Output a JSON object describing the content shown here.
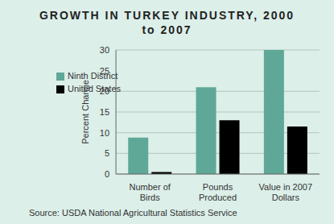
{
  "chart_data": {
    "type": "bar",
    "title": "GROWTH IN TURKEY INDUSTRY, 2000 to 2007",
    "y_label": "Percent Change",
    "source": "Source: USDA National Agricultural Statistics Service",
    "categories": [
      "Number of Birds",
      "Pounds Produced",
      "Value in 2007 Dollars"
    ],
    "series": [
      {
        "name": "Ninth District",
        "color": "#5fa898",
        "values": [
          8.8,
          21,
          30
        ]
      },
      {
        "name": "United States",
        "color": "#000000",
        "values": [
          0.5,
          13,
          11.5
        ]
      }
    ],
    "ylim": [
      0,
      30
    ],
    "yticks": [
      0,
      5,
      10,
      15,
      20,
      25,
      30
    ],
    "grid": true,
    "legend": "upper left"
  }
}
